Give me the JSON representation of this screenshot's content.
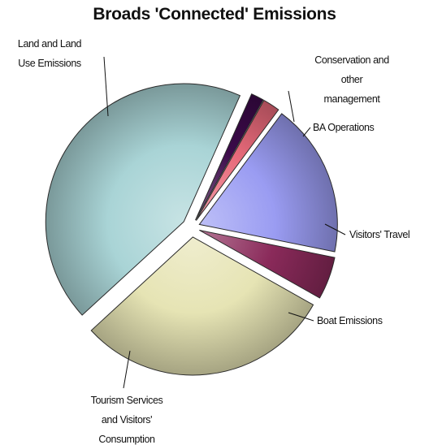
{
  "chart_data": {
    "type": "pie",
    "title": "Broads 'Connected' Emissions",
    "categories": [
      "Conservation and other management",
      "BA Operations",
      "Visitors' Travel",
      "Boat Emissions",
      "Tourism Services and Visitors' Consumption",
      "Land and Land Use Emissions"
    ],
    "values": [
      1.5,
      2,
      18,
      5,
      30,
      43.5
    ],
    "label_lines": [
      [
        "Conservation and",
        "other",
        "management"
      ],
      [
        "BA Operations"
      ],
      [
        "Visitors' Travel"
      ],
      [
        "Boat Emissions"
      ],
      [
        "Tourism Services",
        "and Visitors'",
        "Consumption"
      ],
      [
        "Land and Land",
        "Use Emissions"
      ]
    ],
    "colors": [
      "#3c0a4a",
      "#e86a7a",
      "#9a9cf2",
      "#8a2a5a",
      "#e6e4b4",
      "#a9d4d6"
    ],
    "legend": "none"
  }
}
